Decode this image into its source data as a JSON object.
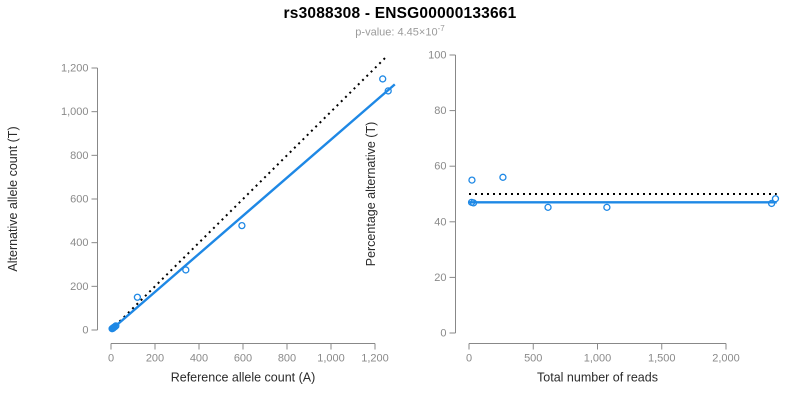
{
  "header": {
    "title": "rs3088308 - ENSG00000133661",
    "pvalue_text": "p-value: 4.45×10",
    "pvalue_exponent": "-7"
  },
  "colors": {
    "accent": "#1e88e5",
    "identity_line": "#000000",
    "axis": "#888888",
    "tick_label": "#8a8a8a",
    "axis_title": "#2b2b2b",
    "title": "#000000",
    "subtitle": "#9b9b9b",
    "background": "#ffffff"
  },
  "chart_data": [
    {
      "type": "scatter",
      "name": "allele-counts-plot",
      "xlabel": "Reference allele count (A)",
      "ylabel": "Alternative allele count (T)",
      "xlim": [
        0,
        1290
      ],
      "ylim": [
        0,
        1250
      ],
      "grid": false,
      "legend": "none",
      "xticks": [
        [
          0,
          "0"
        ],
        [
          200,
          "200"
        ],
        [
          400,
          "400"
        ],
        [
          600,
          "600"
        ],
        [
          800,
          "800"
        ],
        [
          1000,
          "1,000"
        ],
        [
          1200,
          "1,200"
        ]
      ],
      "yticks": [
        [
          0,
          "0"
        ],
        [
          200,
          "200"
        ],
        [
          400,
          "400"
        ],
        [
          600,
          "600"
        ],
        [
          800,
          "800"
        ],
        [
          1000,
          "1,000"
        ],
        [
          1200,
          "1,200"
        ]
      ],
      "points": [
        [
          5,
          6
        ],
        [
          9,
          8
        ],
        [
          13,
          12
        ],
        [
          18,
          15
        ],
        [
          22,
          19
        ],
        [
          120,
          150
        ],
        [
          340,
          275
        ],
        [
          595,
          478
        ],
        [
          1235,
          1150
        ],
        [
          1260,
          1095
        ]
      ],
      "lines": [
        {
          "name": "identity-line",
          "x1": 0,
          "y1": 0,
          "x2": 1250,
          "y2": 1250,
          "style": "dotted",
          "color": "black"
        },
        {
          "name": "fit-line",
          "x1": 0,
          "y1": 0,
          "x2": 1290,
          "y2": 1125,
          "style": "solid",
          "color": "blue"
        }
      ]
    },
    {
      "type": "scatter",
      "name": "percentage-plot",
      "xlabel": "Total number of reads",
      "ylabel": "Percentage alternative (T)",
      "xlim": [
        0,
        2400
      ],
      "ylim": [
        0,
        100
      ],
      "grid": false,
      "legend": "none",
      "xticks": [
        [
          0,
          "0"
        ],
        [
          500,
          "500"
        ],
        [
          1000,
          "1,000"
        ],
        [
          1500,
          "1,500"
        ],
        [
          2000,
          "2,000"
        ]
      ],
      "yticks": [
        [
          0,
          "0"
        ],
        [
          20,
          "20"
        ],
        [
          40,
          "40"
        ],
        [
          60,
          "60"
        ],
        [
          80,
          "80"
        ],
        [
          100,
          "100"
        ]
      ],
      "points": [
        [
          23,
          55
        ],
        [
          20,
          47
        ],
        [
          35,
          46.8
        ],
        [
          264,
          56
        ],
        [
          615,
          45.2
        ],
        [
          1073,
          45.2
        ],
        [
          2385,
          48.3
        ],
        [
          2355,
          46.6
        ]
      ],
      "lines": [
        {
          "name": "expected-ratio-line",
          "x1": 0,
          "y1": 50,
          "x2": 2395,
          "y2": 50,
          "style": "dotted",
          "color": "black"
        },
        {
          "name": "observed-ratio-line",
          "x1": 0,
          "y1": 47,
          "x2": 2395,
          "y2": 47,
          "style": "solid",
          "color": "blue"
        }
      ]
    }
  ]
}
